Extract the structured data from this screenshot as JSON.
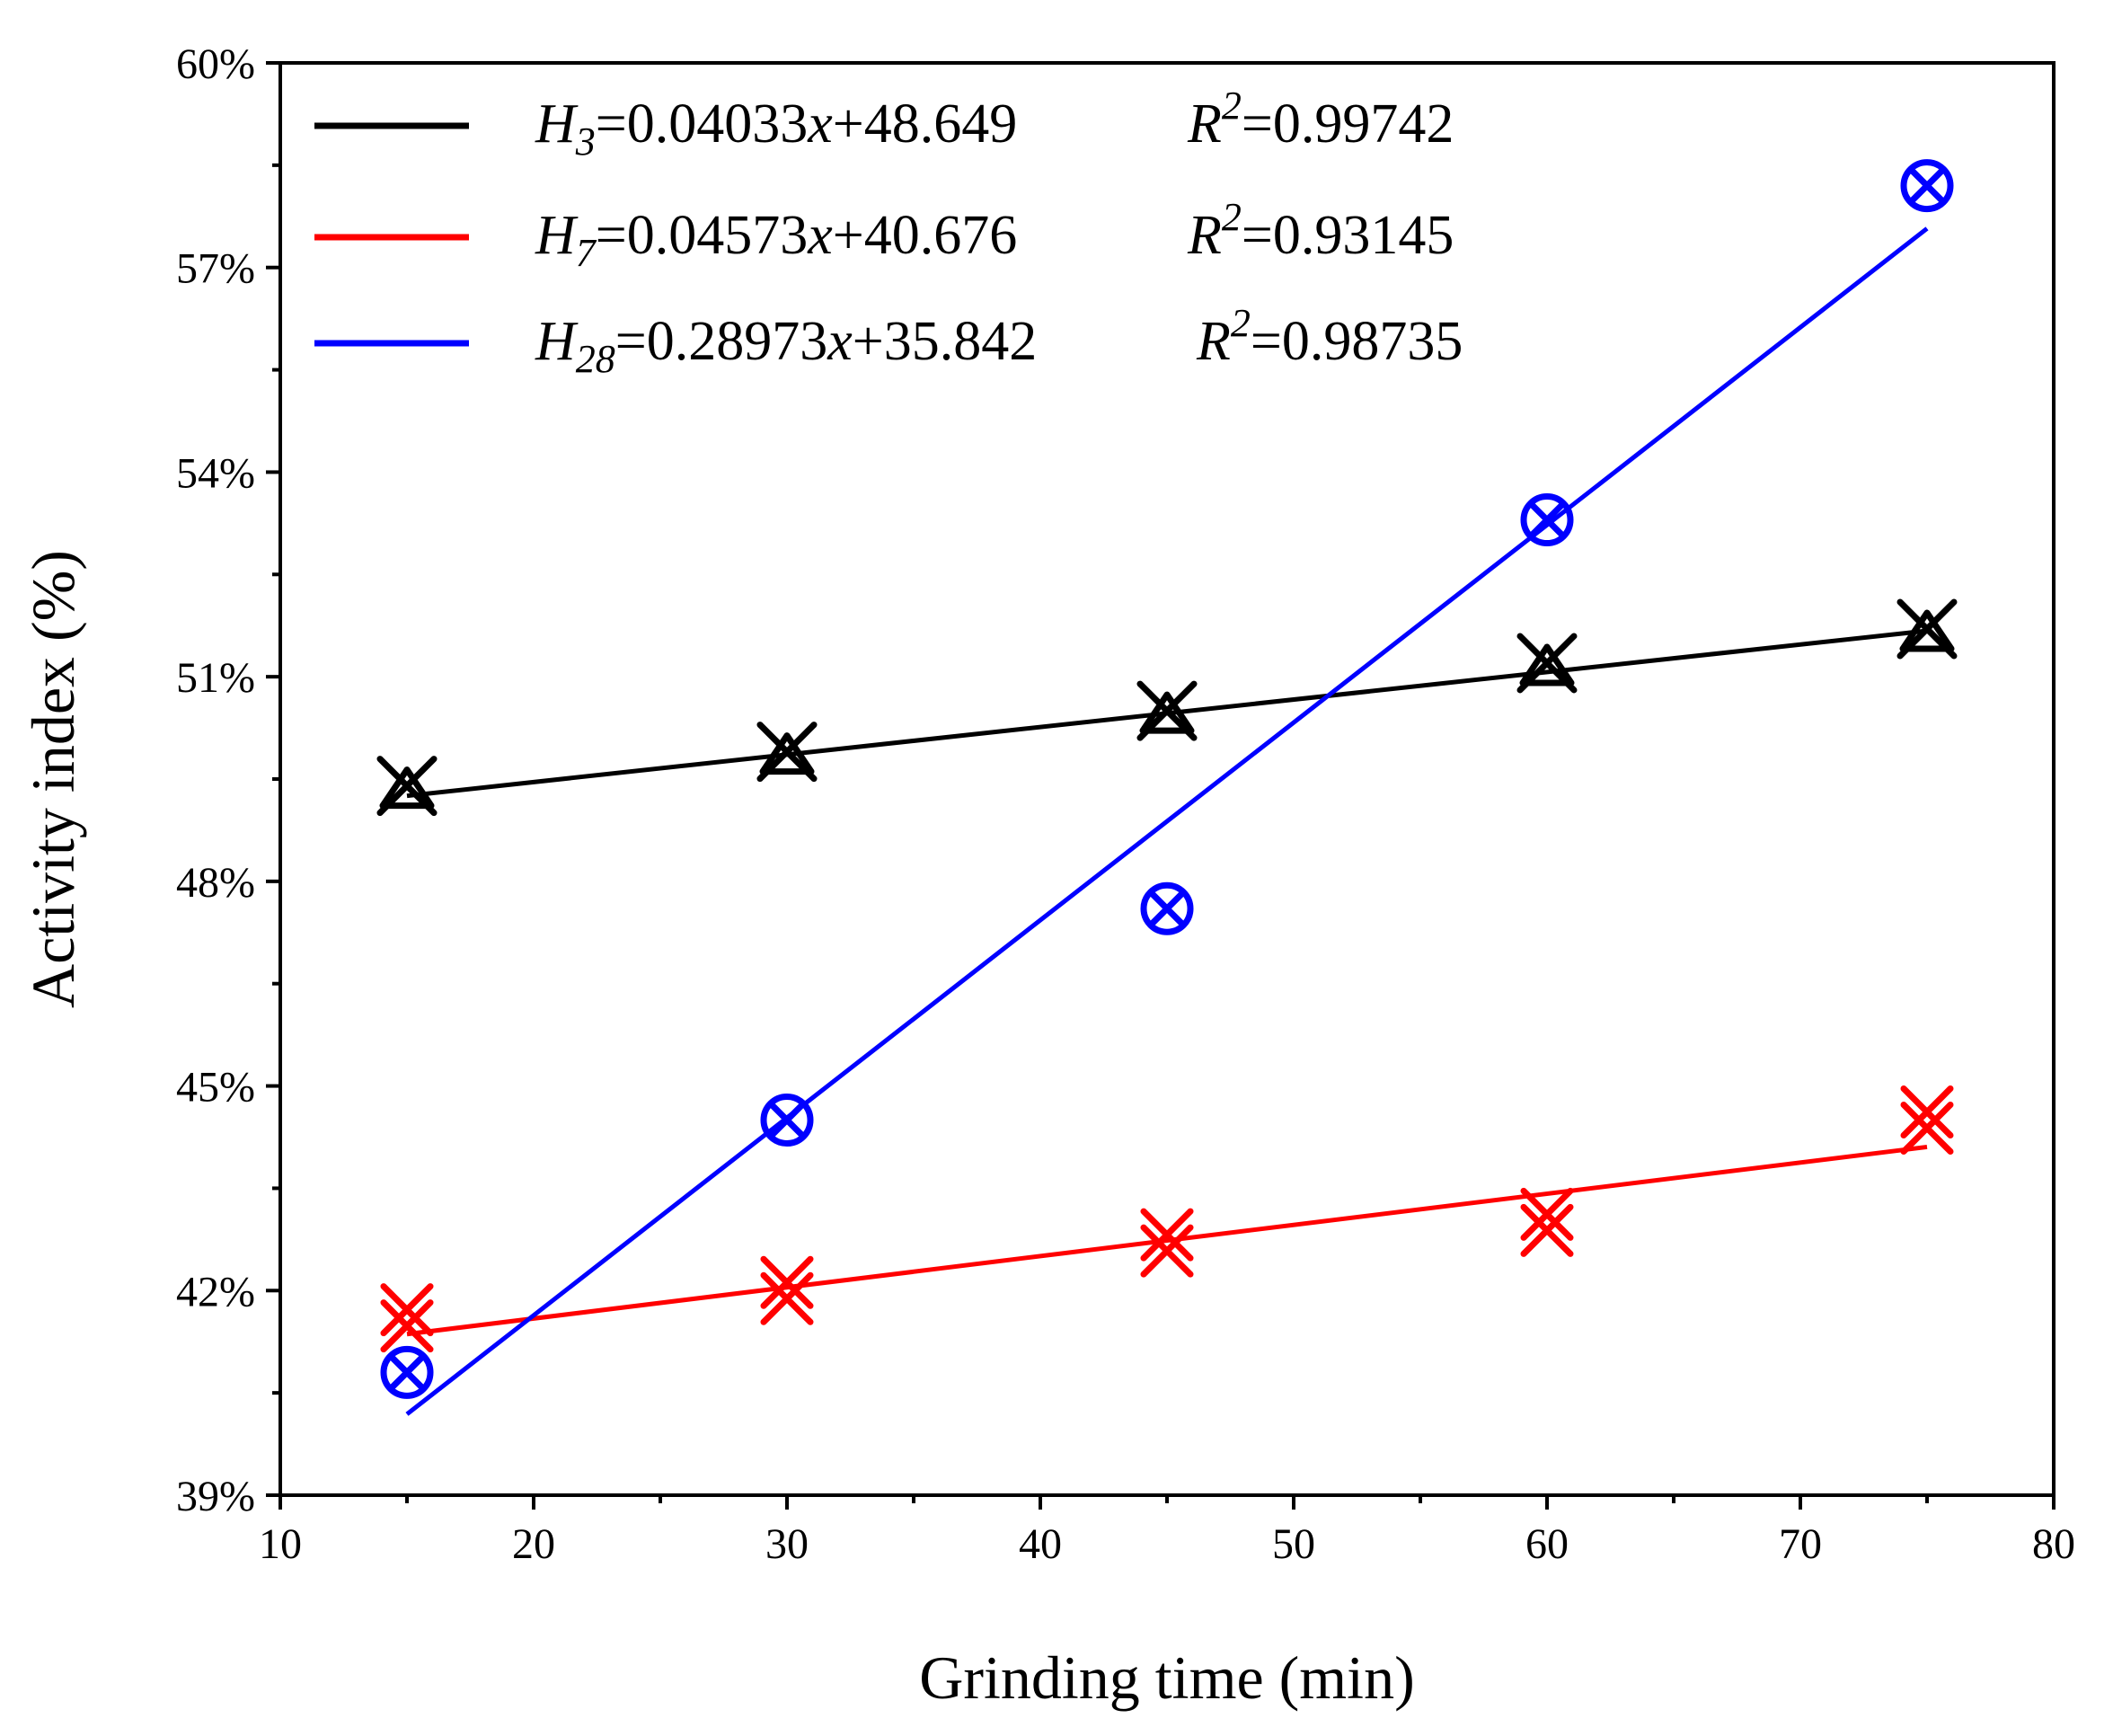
{
  "chart_data": {
    "type": "scatter",
    "title": "",
    "xlabel": "Grinding time (min)",
    "ylabel": "Activity index (%)",
    "xlim": [
      10,
      80
    ],
    "ylim": [
      39,
      60
    ],
    "xticks": [
      10,
      20,
      30,
      40,
      50,
      60,
      70,
      80
    ],
    "yticks": [
      39,
      42,
      45,
      48,
      51,
      54,
      57,
      60
    ],
    "ytick_labels": [
      "39%",
      "42%",
      "45%",
      "48%",
      "51%",
      "54%",
      "57%",
      "60%"
    ],
    "grid": false,
    "legend_position": "top-left",
    "series": [
      {
        "name": "H3",
        "color": "#000000",
        "marker": "triangle-x",
        "x": [
          15,
          30,
          45,
          60,
          75
        ],
        "y": [
          49.4,
          49.9,
          50.5,
          51.2,
          51.7
        ],
        "fit": {
          "slope": 0.04033,
          "intercept": 48.649,
          "x_range": [
            15,
            75
          ]
        },
        "legend": {
          "sym": "H",
          "sub": "3",
          "eq": "=0.04033",
          "x": "x",
          "rest": "+48.649",
          "r": "R",
          "sup": "2",
          "rval": "=0.99742"
        }
      },
      {
        "name": "H7",
        "color": "#ff0000",
        "marker": "double-x",
        "x": [
          15,
          30,
          45,
          60,
          75
        ],
        "y": [
          41.6,
          42.0,
          42.7,
          43.0,
          44.5
        ],
        "fit": {
          "slope": 0.04573,
          "intercept": 40.676,
          "x_range": [
            15,
            75
          ]
        },
        "legend": {
          "sym": "H",
          "sub": "7",
          "eq": "=0.04573",
          "x": "x",
          "rest": "+40.676",
          "r": "R",
          "sup": "2",
          "rval": "=0.93145"
        }
      },
      {
        "name": "H28",
        "color": "#0000ff",
        "marker": "circle-x",
        "x": [
          15,
          30,
          45,
          60,
          75
        ],
        "y": [
          40.8,
          44.5,
          47.6,
          53.3,
          58.2
        ],
        "fit": {
          "slope": 0.28973,
          "intercept": 35.842,
          "x_range": [
            15,
            75
          ]
        },
        "legend": {
          "sym": "H",
          "sub": "28",
          "eq": "=0.28973",
          "x": "x",
          "rest": "+35.842",
          "r": "R",
          "sup": "2",
          "rval": "=0.98735"
        }
      }
    ]
  }
}
